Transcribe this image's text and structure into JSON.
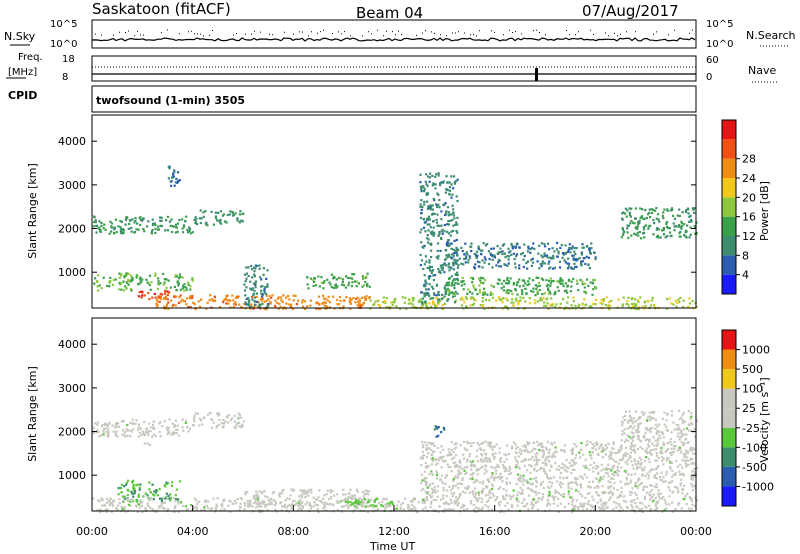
{
  "header": {
    "station": "Saskatoon (fitACF)",
    "beam": "Beam 04",
    "date": "07/Aug/2017"
  },
  "top_panels": {
    "nsky_label": "N.Sky",
    "nsky_ticks": [
      "10^5",
      "10^0"
    ],
    "nsearch_label": "N.Search",
    "nsearch_ticks": [
      "10^5",
      "10^0"
    ],
    "freq_label": "Freq.",
    "freq_unit": "[MHz]",
    "freq_ticks": [
      "18",
      "8"
    ],
    "nave_label": "Nave",
    "nave_ticks": [
      "60",
      "0"
    ],
    "cpid_label": "CPID",
    "cpid_text": "twofsound (1-min) 3505"
  },
  "chart_data": [
    {
      "type": "heatmap",
      "name": "power",
      "ylabel": "Slant Range [km]",
      "xlabel": "",
      "yticks": [
        "1000",
        "2000",
        "3000",
        "4000"
      ],
      "ylim": [
        180,
        4600
      ],
      "xlim": [
        0,
        24
      ],
      "colorbar_label": "Power [dB]",
      "colorbar_ticks": [
        "4",
        "8",
        "12",
        "16",
        "20",
        "24",
        "28"
      ],
      "colorbar_colors": [
        "#1a1aff",
        "#2a5db0",
        "#3c8c6e",
        "#3aa04a",
        "#8cc83c",
        "#f0c81e",
        "#f08c14",
        "#f05014",
        "#e61414"
      ],
      "clim": [
        0,
        30
      ],
      "regions": [
        {
          "t0": 0.0,
          "t1": 4.0,
          "r0": 1900,
          "r1": 2300,
          "level": 10
        },
        {
          "t0": 4.0,
          "t1": 6.0,
          "r0": 2100,
          "r1": 2450,
          "level": 9
        },
        {
          "t0": 3.0,
          "t1": 3.5,
          "r0": 3000,
          "r1": 3500,
          "level": 6
        },
        {
          "t0": 0.0,
          "t1": 4.0,
          "r0": 600,
          "r1": 1000,
          "level": 13
        },
        {
          "t0": 1.8,
          "t1": 3.2,
          "r0": 400,
          "r1": 600,
          "level": 26
        },
        {
          "t0": 2.5,
          "t1": 11.0,
          "r0": 180,
          "r1": 500,
          "level": 22
        },
        {
          "t0": 11.0,
          "t1": 24.0,
          "r0": 180,
          "r1": 450,
          "level": 16
        },
        {
          "t0": 6.0,
          "t1": 7.0,
          "r0": 200,
          "r1": 1200,
          "level": 8
        },
        {
          "t0": 8.5,
          "t1": 11.0,
          "r0": 650,
          "r1": 1000,
          "level": 12
        },
        {
          "t0": 13.0,
          "t1": 14.5,
          "r0": 300,
          "r1": 3300,
          "level": 8
        },
        {
          "t0": 14.0,
          "t1": 20.0,
          "r0": 1100,
          "r1": 1700,
          "level": 7
        },
        {
          "t0": 14.0,
          "t1": 20.0,
          "r0": 500,
          "r1": 900,
          "level": 12
        },
        {
          "t0": 21.0,
          "t1": 24.0,
          "r0": 1800,
          "r1": 2500,
          "level": 10
        }
      ]
    },
    {
      "type": "heatmap",
      "name": "velocity",
      "ylabel": "Slant Range [km]",
      "xlabel": "Time UT",
      "yticks": [
        "1000",
        "2000",
        "3000",
        "4000"
      ],
      "ylim": [
        180,
        4600
      ],
      "xlim": [
        0,
        24
      ],
      "xticks": [
        "00:00",
        "04:00",
        "08:00",
        "12:00",
        "16:00",
        "20:00",
        "00:00"
      ],
      "colorbar_label": "Velocity [m s⁻¹]",
      "colorbar_ticks": [
        "1000",
        "500",
        "100",
        "25",
        "-25",
        "-100",
        "-500",
        "-1000"
      ],
      "colorbar_colors": [
        "#1a1aff",
        "#2a5db0",
        "#3c8c6e",
        "#5ac83c",
        "#c8c8c0",
        "#c8c8c0",
        "#f0c81e",
        "#f08c14",
        "#e61414"
      ],
      "clim": [
        -1000,
        1000
      ],
      "regions": [
        {
          "t0": 0.0,
          "t1": 4.0,
          "r0": 1900,
          "r1": 2300,
          "level": 0
        },
        {
          "t0": 4.0,
          "t1": 6.0,
          "r0": 2100,
          "r1": 2450,
          "level": 0
        },
        {
          "t0": 2.0,
          "t1": 2.5,
          "r0": 1700,
          "r1": 2100,
          "level": 150
        },
        {
          "t0": 1.0,
          "t1": 3.5,
          "r0": 400,
          "r1": 900,
          "level": -300
        },
        {
          "t0": 0.0,
          "t1": 24.0,
          "r0": 180,
          "r1": 500,
          "level": 0
        },
        {
          "t0": 6.0,
          "t1": 11.0,
          "r0": 300,
          "r1": 700,
          "level": 60
        },
        {
          "t0": 10.0,
          "t1": 12.0,
          "r0": 300,
          "r1": 500,
          "level": -200
        },
        {
          "t0": 13.5,
          "t1": 14.0,
          "r0": 1900,
          "r1": 2200,
          "level": -600
        },
        {
          "t0": 13.0,
          "t1": 24.0,
          "r0": 500,
          "r1": 1800,
          "level": 0
        },
        {
          "t0": 21.0,
          "t1": 24.0,
          "r0": 1800,
          "r1": 2500,
          "level": 0
        }
      ]
    }
  ]
}
